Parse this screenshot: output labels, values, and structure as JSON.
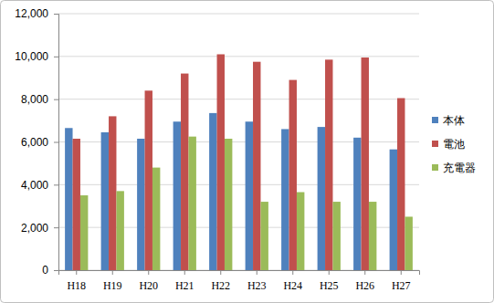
{
  "chart_data": {
    "type": "bar",
    "categories": [
      "H18",
      "H19",
      "H20",
      "H21",
      "H22",
      "H23",
      "H24",
      "H25",
      "H26",
      "H27"
    ],
    "series": [
      {
        "name": "本体",
        "color": "#4f81bd",
        "values": [
          6650,
          6450,
          6150,
          6950,
          7350,
          6950,
          6600,
          6700,
          6200,
          5650
        ]
      },
      {
        "name": "電池",
        "color": "#c0504d",
        "values": [
          6150,
          7200,
          8400,
          9200,
          10100,
          9750,
          8900,
          9850,
          9950,
          8050
        ]
      },
      {
        "name": "充電器",
        "color": "#9bbb59",
        "values": [
          3500,
          3700,
          4800,
          6250,
          6150,
          3200,
          3650,
          3200,
          3200,
          2500
        ]
      }
    ],
    "ylim": [
      0,
      12000
    ],
    "yticks": [
      0,
      {
        "value": 2000,
        "label": "2,000"
      },
      {
        "value": 4000,
        "label": "4,000"
      },
      {
        "value": 6000,
        "label": "6,000"
      },
      {
        "value": 8000,
        "label": "8,000"
      },
      {
        "value": 10000,
        "label": "10,000"
      },
      {
        "value": 12000,
        "label": "12,000"
      }
    ],
    "grid": true,
    "legend": "right"
  }
}
